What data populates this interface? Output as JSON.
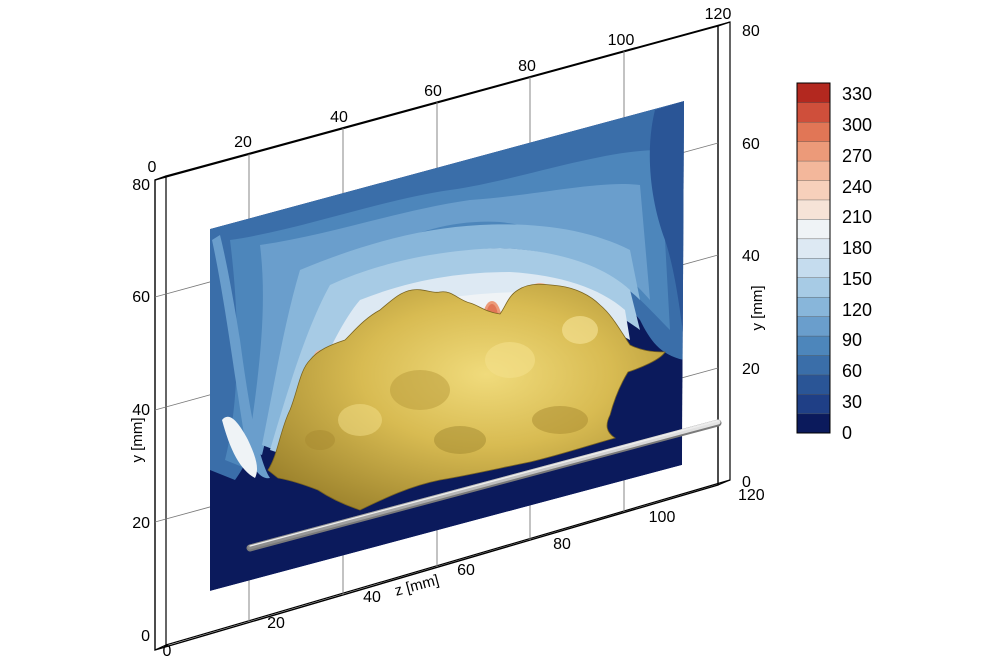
{
  "plot": {
    "axes": {
      "front_y": {
        "label": "y [mm]",
        "ticks": [
          "0",
          "20",
          "40",
          "60",
          "80"
        ]
      },
      "right_y": {
        "label": "y [mm]",
        "ticks": [
          "0",
          "20",
          "40",
          "60",
          "80"
        ]
      },
      "bottom_z": {
        "label": "z [mm]",
        "ticks": [
          "0",
          "20",
          "40",
          "60",
          "80",
          "100"
        ]
      },
      "top_z": {
        "ticks": [
          "0",
          "20",
          "40",
          "60",
          "80",
          "100",
          "120"
        ]
      },
      "right_depth_tick": "120"
    },
    "colorbar": {
      "ticks": [
        "0",
        "30",
        "60",
        "90",
        "120",
        "150",
        "180",
        "210",
        "240",
        "270",
        "300",
        "330"
      ],
      "colors": [
        "#0b1a5c",
        "#1f3f86",
        "#2a5596",
        "#3a6ea9",
        "#4d86bb",
        "#6a9ecc",
        "#88b6da",
        "#a7cbe5",
        "#c5dcee",
        "#dde9f3",
        "#eff3f6",
        "#f6e3d7",
        "#f7d0bb",
        "#f3b79b",
        "#ec9a79",
        "#e17656",
        "#cf4f3b",
        "#b3281f"
      ]
    }
  }
}
